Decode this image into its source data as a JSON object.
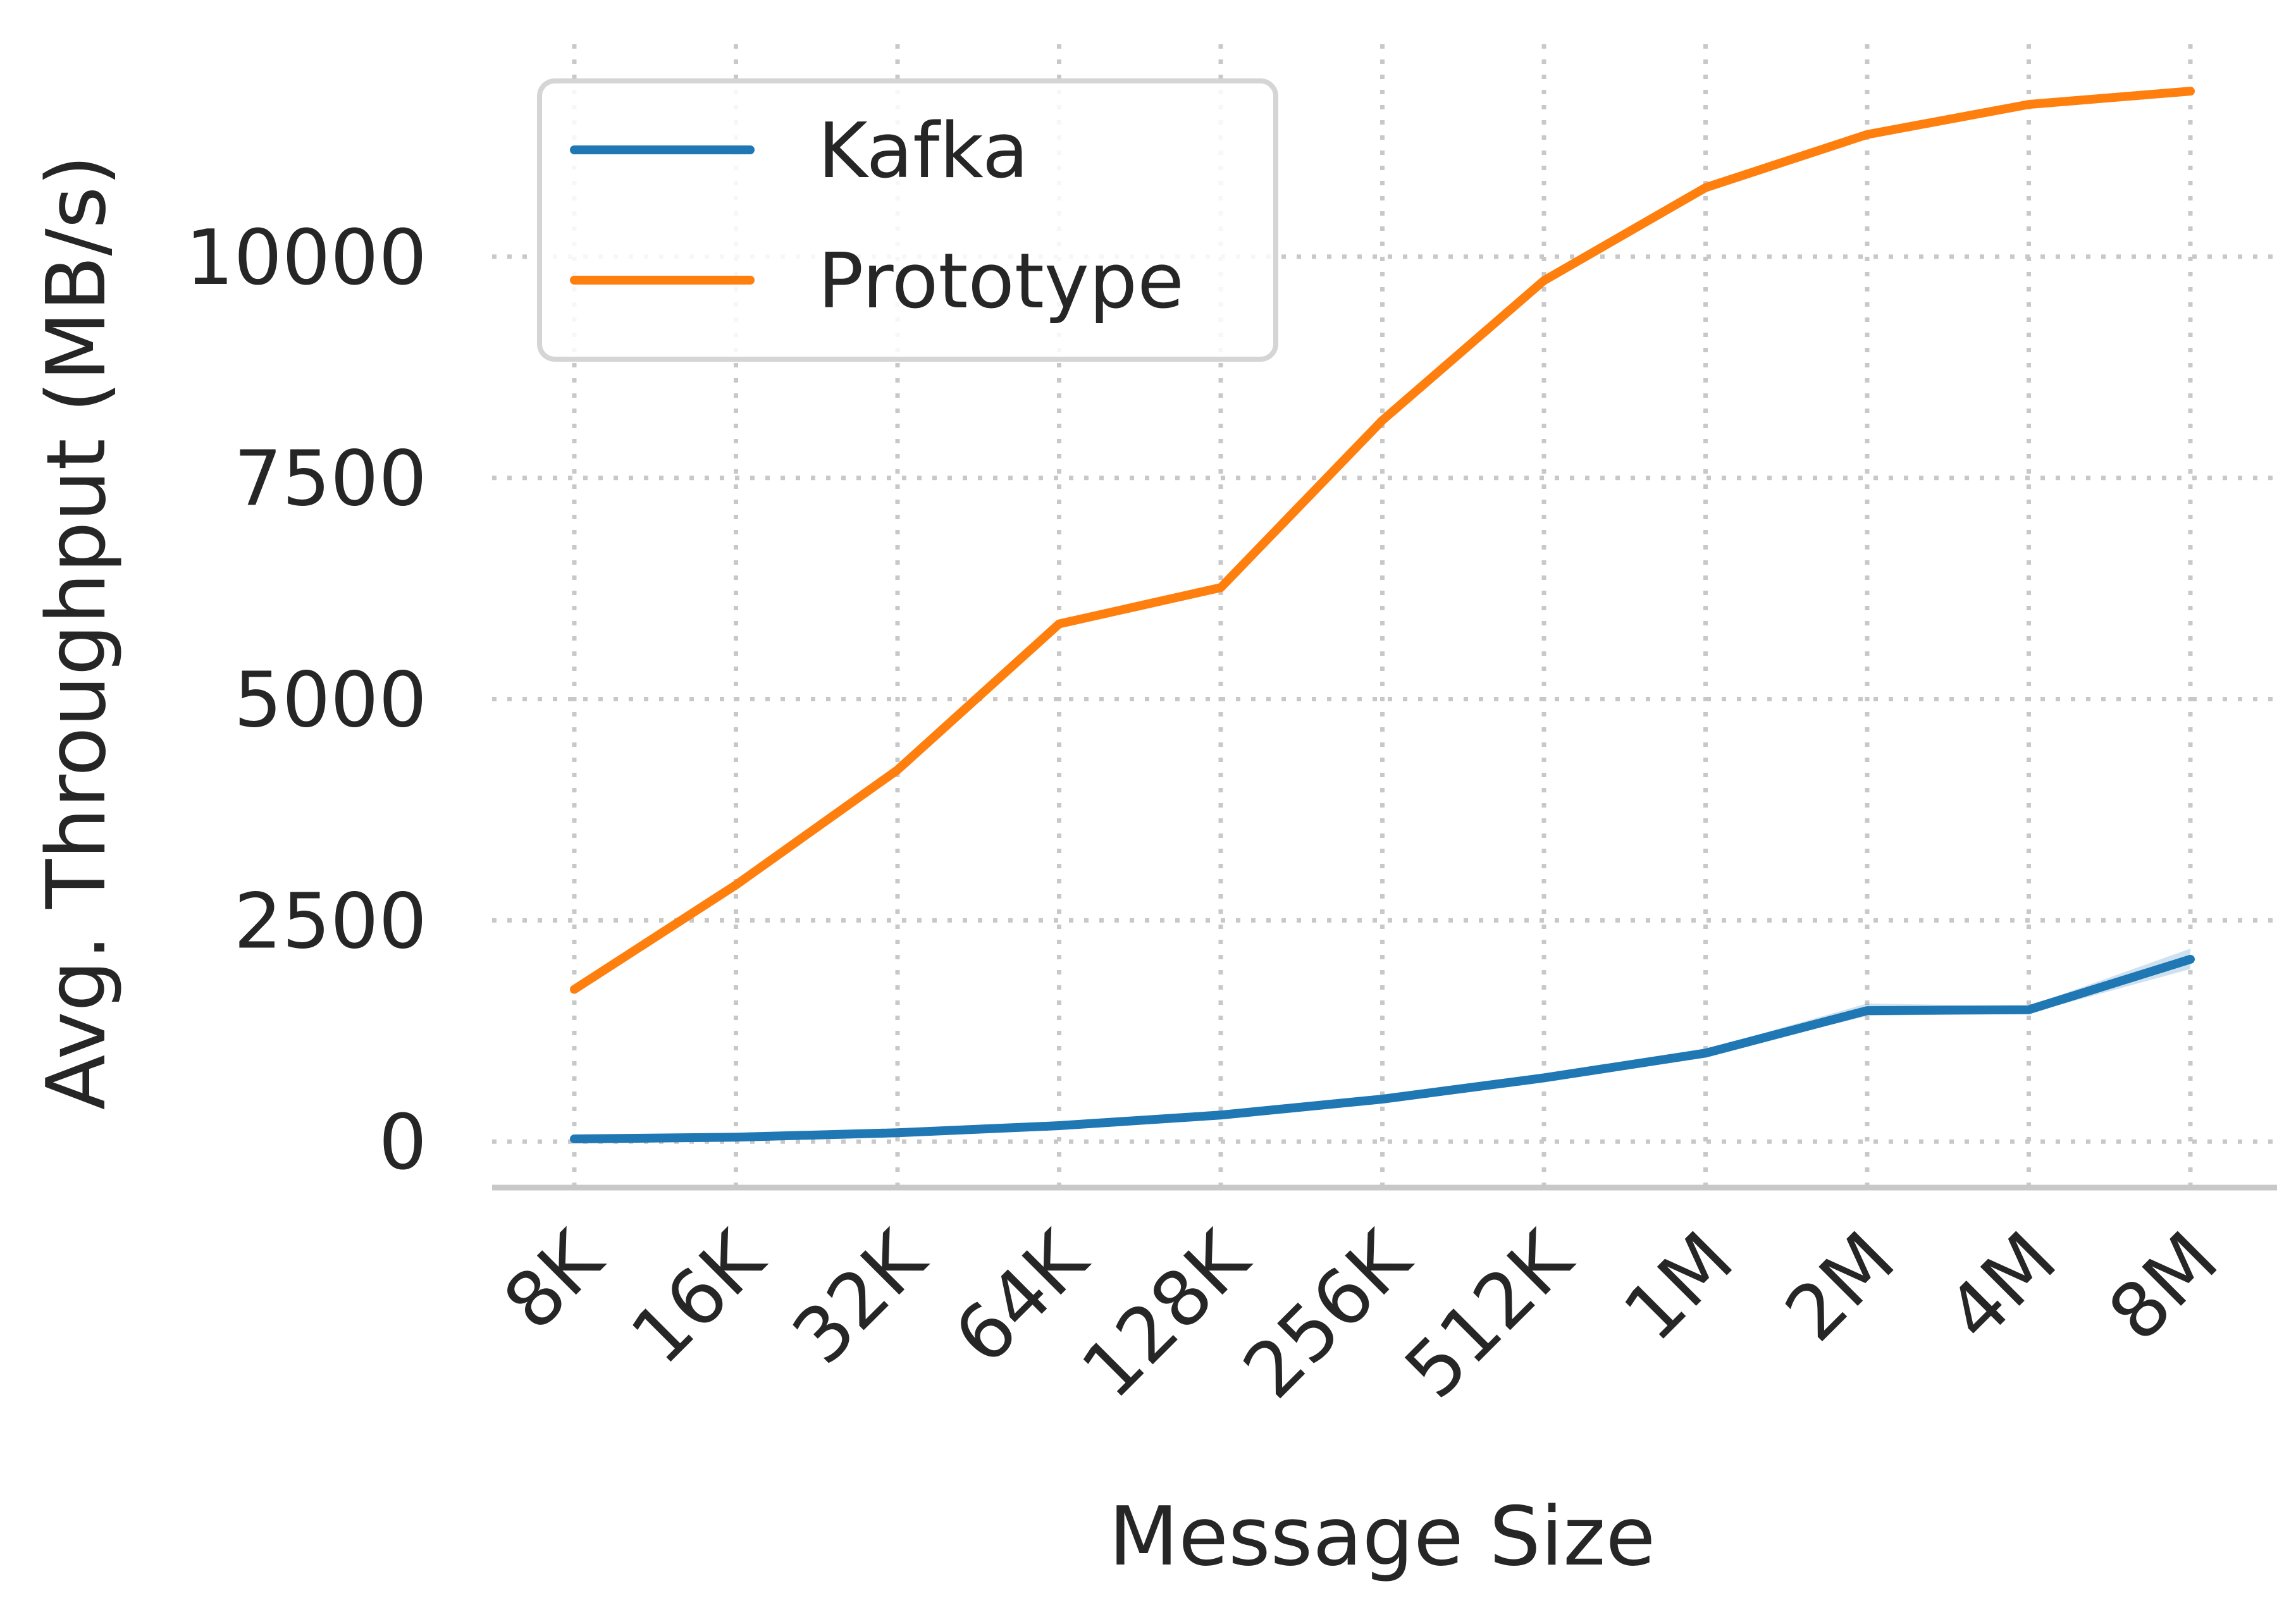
{
  "chart_data": {
    "type": "line",
    "title": "",
    "xlabel": "Message Size",
    "ylabel": "Avg. Throughput (MB/s)",
    "categories": [
      "8K",
      "16K",
      "32K",
      "64K",
      "128K",
      "256K",
      "512K",
      "1M",
      "2M",
      "4M",
      "8M"
    ],
    "yticks": [
      0,
      2500,
      5000,
      7500,
      10000
    ],
    "ytick_labels": [
      "0",
      "2500",
      "5000",
      "7500",
      "10000"
    ],
    "ylim": [
      -520,
      12400
    ],
    "grid": true,
    "legend_position": "top-left",
    "series": [
      {
        "name": "Kafka",
        "color": "#1f77b4",
        "values": [
          30,
          50,
          100,
          180,
          300,
          480,
          720,
          1000,
          1480,
          1490,
          2060
        ],
        "band_low": [
          20,
          40,
          90,
          170,
          290,
          460,
          690,
          970,
          1420,
          1450,
          1950
        ],
        "band_high": [
          40,
          60,
          110,
          190,
          310,
          500,
          760,
          1040,
          1560,
          1530,
          2180
        ]
      },
      {
        "name": "Prototype",
        "color": "#ff7f0e",
        "values": [
          1720,
          2900,
          4200,
          5850,
          6260,
          8150,
          9730,
          10780,
          11380,
          11720,
          11870
        ]
      }
    ]
  }
}
